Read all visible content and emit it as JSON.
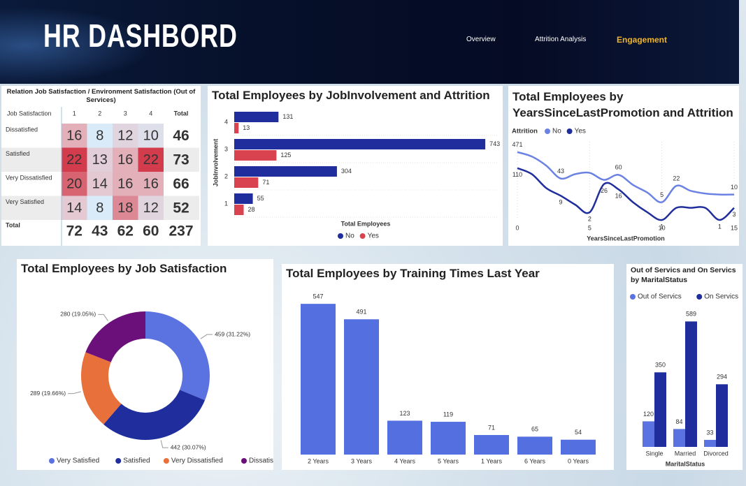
{
  "header": {
    "title": "HR DASHBORD",
    "nav": [
      "Overview",
      "Attrition Analysis",
      "Engagement"
    ]
  },
  "chart_data": [
    {
      "type": "matrix",
      "title": "Relation Job Satisfaction / Environment Satisfaction (Out of Services)",
      "row_header": "Job Satisfaction",
      "columns": [
        "1",
        "2",
        "3",
        "4"
      ],
      "total_label": "Total",
      "rows": [
        "Dissatisfied",
        "Satisfied",
        "Very Dissatisfied",
        "Very Satisfied"
      ],
      "values": [
        [
          16,
          8,
          12,
          10
        ],
        [
          22,
          13,
          16,
          22
        ],
        [
          20,
          14,
          16,
          16
        ],
        [
          14,
          8,
          18,
          12
        ]
      ],
      "row_totals": [
        46,
        73,
        66,
        52
      ],
      "column_totals": [
        72,
        43,
        62,
        60
      ],
      "grand_total": 237,
      "colors": [
        "#d9ebf8",
        "#e6c3cc",
        "#d23c4c"
      ]
    },
    {
      "type": "hbar",
      "title": "Total Employees by JobInvolvement and Attrition",
      "categories": [
        "4",
        "3",
        "2",
        "1"
      ],
      "x_label": "Total Employees",
      "y_label": "JobInvolvement",
      "xlim": [
        0,
        780
      ],
      "series": [
        {
          "name": "No",
          "color": "#1f2e9c",
          "values": [
            131,
            743,
            304,
            55
          ]
        },
        {
          "name": "Yes",
          "color": "#d9434f",
          "values": [
            13,
            125,
            71,
            28
          ]
        }
      ]
    },
    {
      "type": "line",
      "title": "Total Employees by YearsSinceLastPromotion and Attrition",
      "legend_title": "Attrition",
      "x": [
        0,
        1,
        2,
        3,
        4,
        5,
        6,
        7,
        8,
        9,
        10,
        11,
        12,
        13,
        14,
        15
      ],
      "xlim": [
        0,
        15
      ],
      "xticks": [
        0,
        5,
        10,
        15
      ],
      "x_label": "YearsSinceLastPromotion",
      "ylim": [
        1,
        600
      ],
      "log_scale": true,
      "grid": true,
      "series": [
        {
          "name": "No",
          "color": "#6b82e3",
          "values": [
            471,
            316,
            138,
            43,
            64,
            72,
            38,
            60,
            24,
            12,
            5,
            22,
            14,
            11,
            10,
            10
          ],
          "value_labels": [
            "471",
            null,
            null,
            "43",
            null,
            null,
            null,
            "60",
            null,
            null,
            "5",
            "22",
            null,
            null,
            null,
            "10"
          ]
        },
        {
          "name": "Yes",
          "color": "#1f2e9c",
          "values": [
            110,
            64,
            18,
            9,
            4,
            2,
            26,
            16,
            5,
            2,
            1,
            3,
            3,
            3,
            1,
            3
          ],
          "value_labels": [
            "110",
            null,
            null,
            "9",
            null,
            "2",
            "26",
            "16",
            null,
            null,
            "1",
            null,
            null,
            null,
            "1",
            "3"
          ]
        }
      ]
    },
    {
      "type": "donut",
      "title": "Total Employees by Job Satisfaction",
      "categories": [
        "Very Satisfied",
        "Satisfied",
        "Very Dissatisfied",
        "Dissatisfied"
      ],
      "values": [
        459,
        442,
        289,
        280
      ],
      "value_labels": [
        "459 (31.22%)",
        "442 (30.07%)",
        "289 (19.66%)",
        "280 (19.05%)"
      ],
      "colors": [
        "#5a73e0",
        "#1f2e9c",
        "#e8703a",
        "#6b0f7a"
      ]
    },
    {
      "type": "bar",
      "title": "Total Employees by Training Times Last Year",
      "categories": [
        "2 Years",
        "3 Years",
        "4 Years",
        "5 Years",
        "1 Years",
        "6 Years",
        "0 Years"
      ],
      "values": [
        547,
        491,
        123,
        119,
        71,
        65,
        54
      ],
      "color": "#5470e0",
      "ylim": [
        0,
        560
      ]
    },
    {
      "type": "grouped_bar",
      "title": "Out of Servics and On Servics by MaritalStatus",
      "categories": [
        "Single",
        "Married",
        "Divorced"
      ],
      "x_label": "MaritalStatus",
      "ylim": [
        0,
        600
      ],
      "series": [
        {
          "name": "Out of Servics",
          "color": "#5a73e0",
          "values": [
            120,
            84,
            33
          ]
        },
        {
          "name": "On Servics",
          "color": "#1f2e9c",
          "values": [
            350,
            589,
            294
          ]
        }
      ]
    }
  ]
}
